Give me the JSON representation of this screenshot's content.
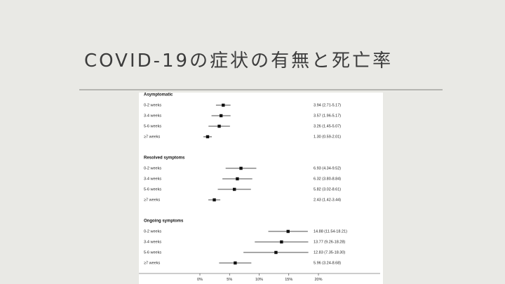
{
  "slide": {
    "title": "COVID-19の症状の有無と死亡率"
  },
  "chart_data": {
    "type": "forest",
    "x_ticks": [
      "0%",
      "5%",
      "10%",
      "15%",
      "20%"
    ],
    "xlim": [
      0,
      20
    ],
    "groups": [
      {
        "name": "Asymptomatic",
        "rows": [
          {
            "label": "0-2 weeks",
            "estimate": 3.94,
            "low": 2.71,
            "high": 5.17,
            "text": "3.94 (2.71-5.17)"
          },
          {
            "label": "3-4 weeks",
            "estimate": 3.57,
            "low": 1.96,
            "high": 5.17,
            "text": "3.57 (1.96-5.17)"
          },
          {
            "label": "5-6 weeks",
            "estimate": 3.26,
            "low": 1.45,
            "high": 5.07,
            "text": "3.26 (1.45-5.07)"
          },
          {
            "label": "≥7 weeks",
            "estimate": 1.3,
            "low": 0.59,
            "high": 2.01,
            "text": "1.30 (0.59-2.01)"
          }
        ]
      },
      {
        "name": "Resolved symptoms",
        "rows": [
          {
            "label": "0-2 weeks",
            "estimate": 6.93,
            "low": 4.34,
            "high": 9.52,
            "text": "6.93 (4.34-9.52)"
          },
          {
            "label": "3-4 weeks",
            "estimate": 6.32,
            "low": 3.8,
            "high": 8.84,
            "text": "6.32 (3.80-8.84)"
          },
          {
            "label": "5-6 weeks",
            "estimate": 5.82,
            "low": 3.02,
            "high": 8.61,
            "text": "5.82 (3.02-8.61)"
          },
          {
            "label": "≥7 weeks",
            "estimate": 2.43,
            "low": 1.42,
            "high": 3.44,
            "text": "2.43 (1.42-3.44)"
          }
        ]
      },
      {
        "name": "Ongoing symptoms",
        "rows": [
          {
            "label": "0-2 weeks",
            "estimate": 14.88,
            "low": 11.54,
            "high": 18.21,
            "text": "14.88 (11.54-18.21)"
          },
          {
            "label": "3-4 weeks",
            "estimate": 13.77,
            "low": 9.26,
            "high": 18.28,
            "text": "13.77 (9.26-18.28)"
          },
          {
            "label": "5-6 weeks",
            "estimate": 12.83,
            "low": 7.35,
            "high": 18.3,
            "text": "12.83 (7.35-18.30)"
          },
          {
            "label": "≥7 weeks",
            "estimate": 5.96,
            "low": 3.24,
            "high": 8.68,
            "text": "5.96 (3.24-8.68)"
          }
        ]
      }
    ]
  }
}
